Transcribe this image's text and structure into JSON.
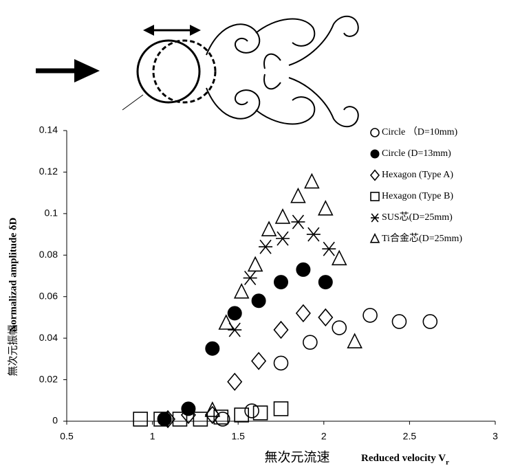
{
  "chart_data": {
    "type": "scatter",
    "y_label": "Normalizad amplitude δD",
    "y_label_jp": "無次元振幅",
    "x_label_jp": "無次元流速",
    "x_label": "Reduced velocity V",
    "x_label_sub": "r",
    "xlim": [
      0.5,
      3
    ],
    "xticks": [
      0.5,
      1,
      1.5,
      2,
      2.5,
      3
    ],
    "ylim": [
      0,
      0.14
    ],
    "yticks": [
      0,
      0.02,
      0.04,
      0.06,
      0.08,
      0.1,
      0.12,
      0.14
    ],
    "series": [
      {
        "name": "Circle （D=10mm)",
        "marker": "circle-open",
        "color": "#000000",
        "x": [
          1.41,
          1.58,
          1.75,
          1.92,
          2.09,
          2.27,
          2.44,
          2.62
        ],
        "values": [
          0.001,
          0.005,
          0.028,
          0.038,
          0.045,
          0.051,
          0.048,
          0.048
        ]
      },
      {
        "name": "Circle (D=13mm)",
        "marker": "circle-filled",
        "color": "#000000",
        "x": [
          1.07,
          1.21,
          1.35,
          1.48,
          1.62,
          1.75,
          1.88,
          2.01
        ],
        "values": [
          0.001,
          0.006,
          0.035,
          0.052,
          0.058,
          0.067,
          0.073,
          0.067
        ]
      },
      {
        "name": "Hexagon (Type A)",
        "marker": "diamond",
        "color": "#000000",
        "x": [
          1.09,
          1.21,
          1.35,
          1.48,
          1.62,
          1.75,
          1.88,
          2.01
        ],
        "values": [
          0.001,
          0.003,
          0.003,
          0.019,
          0.029,
          0.044,
          0.052,
          0.05
        ]
      },
      {
        "name": "Hexagon (Type B)",
        "marker": "square",
        "color": "#000000",
        "x": [
          0.93,
          1.05,
          1.16,
          1.28,
          1.4,
          1.52,
          1.63,
          1.75
        ],
        "values": [
          0.001,
          0.001,
          0.001,
          0.001,
          0.002,
          0.003,
          0.004,
          0.006
        ]
      },
      {
        "name": "SUS芯(D=25mm)",
        "marker": "asterisk",
        "color": "#000000",
        "x": [
          1.48,
          1.57,
          1.66,
          1.76,
          1.85,
          1.94,
          2.03
        ],
        "values": [
          0.044,
          0.069,
          0.084,
          0.088,
          0.096,
          0.09,
          0.083
        ]
      },
      {
        "name": "Ti合金芯(D=25mm)",
        "marker": "triangle",
        "color": "#000000",
        "x": [
          1.35,
          1.43,
          1.52,
          1.6,
          1.68,
          1.76,
          1.85,
          1.93,
          2.01,
          2.09,
          2.18
        ],
        "values": [
          0.005,
          0.047,
          0.062,
          0.075,
          0.092,
          0.098,
          0.108,
          0.115,
          0.102,
          0.078,
          0.038
        ]
      }
    ]
  }
}
